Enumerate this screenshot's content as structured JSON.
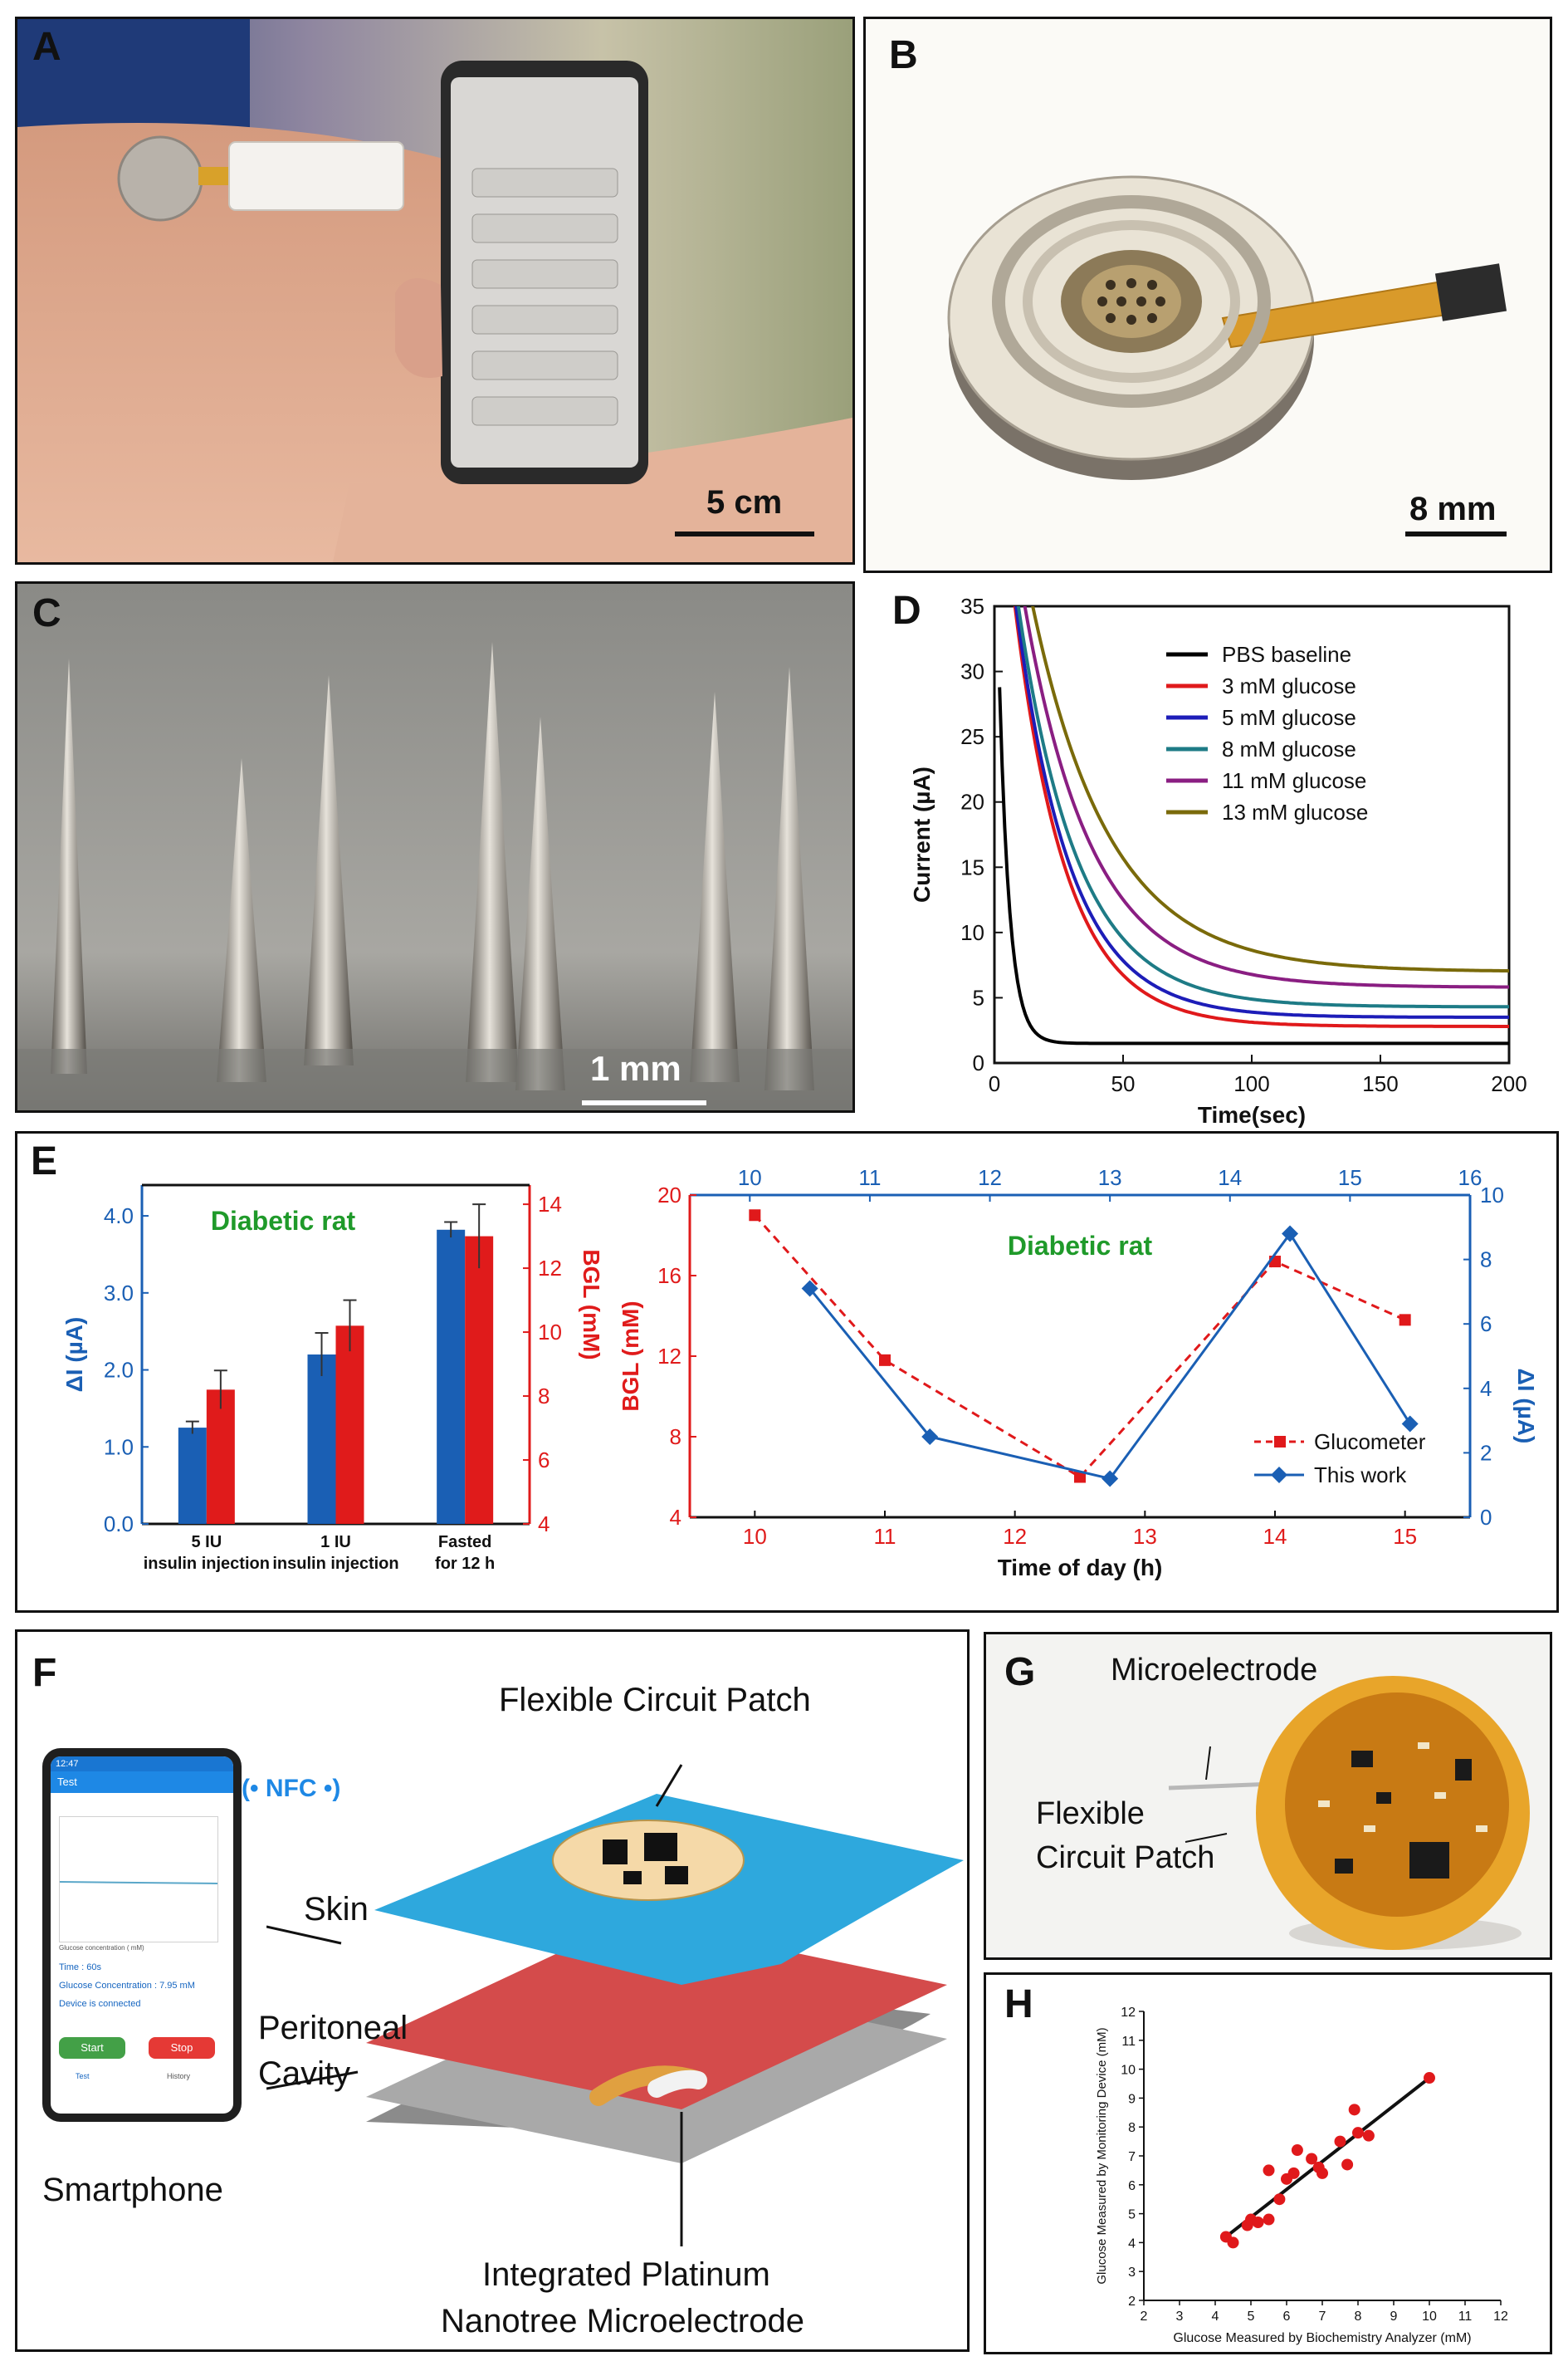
{
  "panels": {
    "A": {
      "label": "A",
      "scale": "5 cm"
    },
    "B": {
      "label": "B",
      "scale": "8 mm"
    },
    "C": {
      "label": "C",
      "scale": "1 mm"
    },
    "D": {
      "label": "D"
    },
    "E": {
      "label": "E"
    },
    "F": {
      "label": "F"
    },
    "G": {
      "label": "G"
    },
    "H": {
      "label": "H"
    }
  },
  "fig_f": {
    "nfc": "NFC",
    "flex_patch": "Flexible Circuit Patch",
    "skin": "Skin",
    "peritoneal_1": "Peritoneal",
    "peritoneal_2": "Cavity",
    "smartphone": "Smartphone",
    "electrode_1": "Integrated Platinum",
    "electrode_2": "Nanotree Microelectrode",
    "phone": {
      "status": "12:47",
      "title": "Test",
      "legend": "Glucose concentration ( mM)",
      "time": "Time : 60s",
      "conc": "Glucose Concentration : 7.95 mM",
      "status_text": "Device is connected",
      "start": "Start",
      "stop": "Stop",
      "nav1": "Test",
      "nav2": "History"
    }
  },
  "fig_g": {
    "micro": "Microelectrode",
    "flex1": "Flexible",
    "flex2": "Circuit Patch"
  },
  "colors": {
    "blue": "#1a5fb4",
    "red": "#e01b1b",
    "green": "#1f9a2a"
  },
  "chart_data": [
    {
      "id": "D",
      "type": "line",
      "title": "",
      "xlabel": "Time(sec)",
      "ylabel": "Current (µA)",
      "xlim": [
        0,
        200
      ],
      "ylim": [
        0,
        35
      ],
      "xticks": [
        "0",
        "50",
        "100",
        "150",
        "200"
      ],
      "yticks": [
        "0",
        "5",
        "10",
        "15",
        "20",
        "25",
        "30",
        "35"
      ],
      "series": [
        {
          "name": "PBS baseline",
          "color": "#000000",
          "amp": 45,
          "tau": 4,
          "base": 1.5
        },
        {
          "name": "3 mM glucose",
          "color": "#e0191b",
          "amp": 48,
          "tau": 20,
          "base": 2.8
        },
        {
          "name": "5 mM glucose",
          "color": "#1d1db8",
          "amp": 47,
          "tau": 21,
          "base": 3.5
        },
        {
          "name": "8 mM glucose",
          "color": "#1e7b86",
          "amp": 46,
          "tau": 23,
          "base": 4.3
        },
        {
          "name": "11 mM glucose",
          "color": "#8a1e82",
          "amp": 46,
          "tau": 26,
          "base": 5.8
        },
        {
          "name": "13 mM glucose",
          "color": "#7a6a0a",
          "amp": 46,
          "tau": 30,
          "base": 7.0
        }
      ]
    },
    {
      "id": "E-bar",
      "type": "bar",
      "title": "Diabetic rat",
      "categories": [
        [
          "5 IU",
          "insulin injection"
        ],
        [
          "1 IU",
          "insulin injection"
        ],
        [
          "Fasted",
          "for 12 h"
        ]
      ],
      "ylabel_left": "ΔI (µA)",
      "ylabel_right": "BGL (mM)",
      "ylim_left": [
        0,
        4.4
      ],
      "ylim_right": [
        4,
        14.6
      ],
      "yticks_left": [
        "0.0",
        "1.0",
        "2.0",
        "3.0",
        "4.0"
      ],
      "yticks_right": [
        "4",
        "6",
        "8",
        "10",
        "12",
        "14"
      ],
      "series": [
        {
          "name": "ΔI",
          "axis": "left",
          "values": [
            1.25,
            2.2,
            3.82
          ],
          "errors": [
            0.08,
            0.28,
            0.1
          ]
        },
        {
          "name": "BGL",
          "axis": "right",
          "values": [
            8.2,
            10.2,
            13.0
          ],
          "errors": [
            0.6,
            0.8,
            1.0
          ]
        }
      ]
    },
    {
      "id": "E-line",
      "type": "line",
      "title": "Diabetic rat",
      "xlabel": "Time of day (h)",
      "ylabel_left": "BGL (mM)",
      "ylabel_right": "ΔI (µA)",
      "xlim_bottom": [
        9.5,
        15.5
      ],
      "xlim_top": [
        9.5,
        16
      ],
      "ylim_left": [
        4,
        20
      ],
      "ylim_right": [
        0,
        10
      ],
      "xticks_bottom": [
        "10",
        "11",
        "12",
        "13",
        "14",
        "15"
      ],
      "xticks_top": [
        "10",
        "11",
        "12",
        "13",
        "14",
        "15",
        "16"
      ],
      "yticks_left": [
        "4",
        "8",
        "12",
        "16",
        "20"
      ],
      "yticks_right": [
        "0",
        "2",
        "4",
        "6",
        "8",
        "10"
      ],
      "series": [
        {
          "name": "Glucometer",
          "axis": "left",
          "style": "dashed",
          "color": "#e0191b",
          "x": [
            10,
            11,
            12.5,
            14,
            15
          ],
          "y": [
            19.0,
            11.8,
            6.0,
            16.7,
            13.8
          ]
        },
        {
          "name": "This work",
          "axis": "right",
          "style": "solid",
          "color": "#1a5fb4",
          "x": [
            10.5,
            11.5,
            13,
            14.5,
            15.5
          ],
          "y": [
            7.1,
            2.5,
            1.2,
            8.8,
            2.9
          ]
        }
      ]
    },
    {
      "id": "H",
      "type": "scatter",
      "xlabel": "Glucose Measured by Biochemistry Analyzer (mM)",
      "ylabel": "Glucose Measured by Monitoring Device (mM)",
      "xlim": [
        2,
        12
      ],
      "ylim": [
        2,
        12
      ],
      "xticks": [
        "2",
        "3",
        "4",
        "5",
        "6",
        "7",
        "8",
        "9",
        "10",
        "11",
        "12"
      ],
      "yticks": [
        "2",
        "3",
        "4",
        "5",
        "6",
        "7",
        "8",
        "9",
        "10",
        "11",
        "12"
      ],
      "points": [
        [
          4.3,
          4.2
        ],
        [
          4.5,
          4.0
        ],
        [
          4.9,
          4.6
        ],
        [
          5.0,
          4.8
        ],
        [
          5.2,
          4.7
        ],
        [
          5.5,
          4.8
        ],
        [
          5.5,
          6.5
        ],
        [
          5.8,
          5.5
        ],
        [
          6.0,
          6.2
        ],
        [
          6.2,
          6.4
        ],
        [
          6.3,
          7.2
        ],
        [
          6.7,
          6.9
        ],
        [
          6.9,
          6.6
        ],
        [
          7.0,
          6.4
        ],
        [
          7.5,
          7.5
        ],
        [
          7.7,
          6.7
        ],
        [
          7.9,
          8.6
        ],
        [
          8.0,
          7.8
        ],
        [
          8.3,
          7.7
        ],
        [
          10.0,
          9.7
        ]
      ],
      "fit": [
        [
          4.3,
          4.2
        ],
        [
          10.0,
          9.7
        ]
      ]
    }
  ]
}
